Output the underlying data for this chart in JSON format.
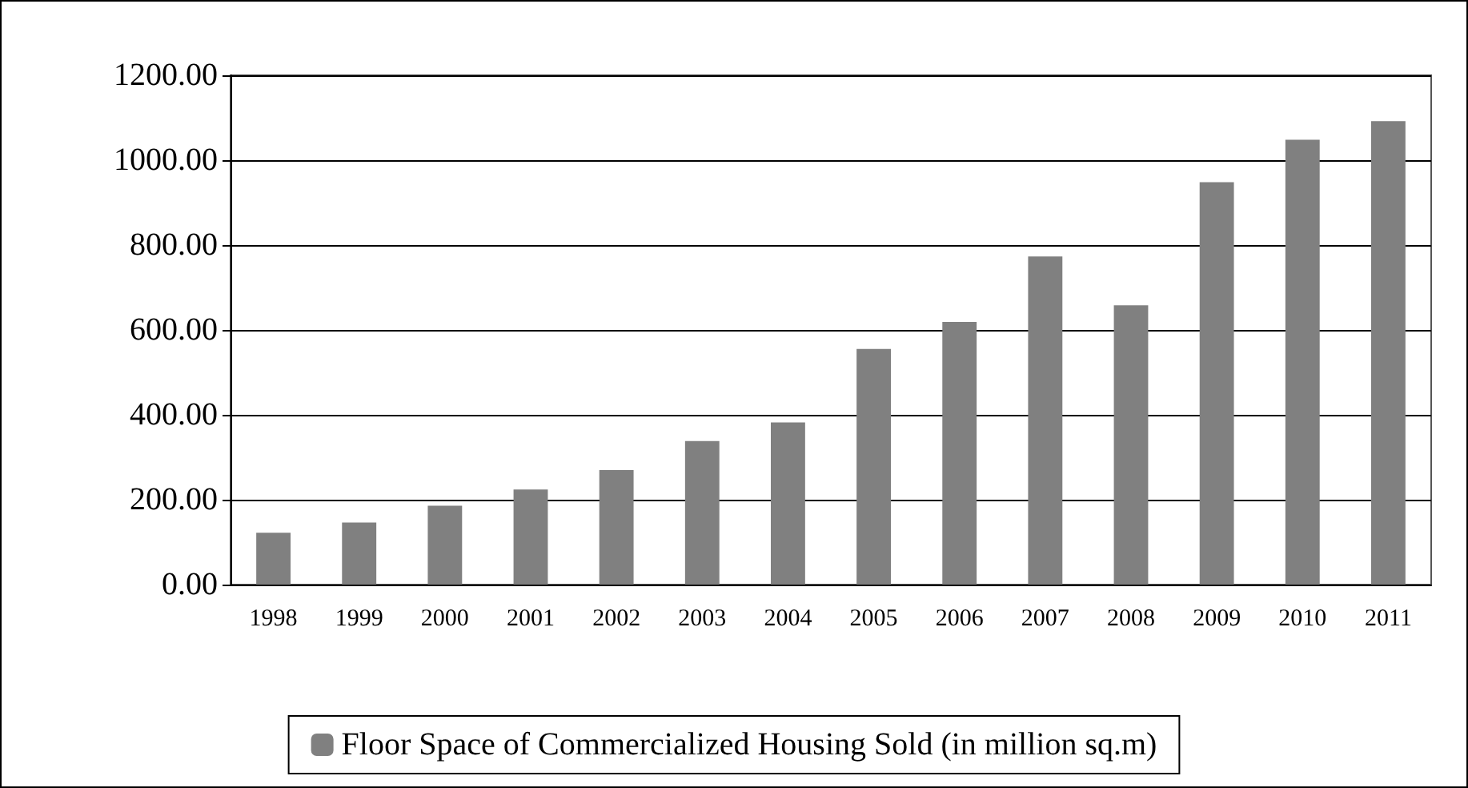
{
  "chart_data": {
    "type": "bar",
    "categories": [
      "1998",
      "1999",
      "2000",
      "2001",
      "2002",
      "2003",
      "2004",
      "2005",
      "2006",
      "2007",
      "2008",
      "2009",
      "2010",
      "2011"
    ],
    "series": [
      {
        "name": "Floor Space of Commercialized Housing Sold (in million sq.m)",
        "color": "#808080",
        "values": [
          122,
          146,
          186,
          224,
          270,
          338,
          382,
          555,
          619,
          773,
          658,
          948,
          1048,
          1092
        ]
      }
    ],
    "ylim": [
      0,
      1200
    ],
    "yticks": [
      {
        "value": 0,
        "label": "0.00"
      },
      {
        "value": 200,
        "label": "200.00"
      },
      {
        "value": 400,
        "label": "400.00"
      },
      {
        "value": 600,
        "label": "600.00"
      },
      {
        "value": 800,
        "label": "800.00"
      },
      {
        "value": 1000,
        "label": "1000.00"
      },
      {
        "value": 1200,
        "label": "1200.00"
      }
    ],
    "grid": "y",
    "legend": "bottom"
  }
}
